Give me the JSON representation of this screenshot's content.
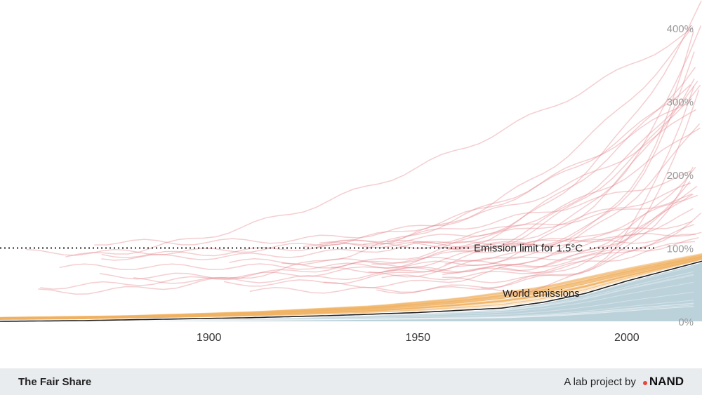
{
  "chart_data": {
    "type": "line",
    "title": "",
    "xlabel": "",
    "ylabel": "",
    "xlim": [
      1850,
      2018
    ],
    "ylim": [
      0,
      430
    ],
    "x_ticks": [
      1900,
      1950,
      2000
    ],
    "x_tick_labels": [
      "1900",
      "1950",
      "2000"
    ],
    "y_ticks": [
      0,
      100,
      200,
      300,
      400
    ],
    "y_tick_labels": [
      "0%",
      "100%",
      "200%",
      "300%",
      "400%"
    ],
    "grid": false,
    "reference_line": {
      "label": "Emission limit for 1.5°C",
      "y": 100,
      "style": "dotted"
    },
    "world_emissions": {
      "label": "World emissions",
      "x": [
        1850,
        1870,
        1890,
        1910,
        1930,
        1950,
        1960,
        1970,
        1980,
        1990,
        2000,
        2010,
        2018
      ],
      "values": [
        0,
        1,
        3,
        5,
        8,
        12,
        15,
        18,
        26,
        38,
        55,
        70,
        82
      ]
    },
    "country_band_below_limit": {
      "upper_x": [
        1850,
        1880,
        1910,
        1940,
        1960,
        1980,
        2000,
        2018
      ],
      "upper_values": [
        5,
        7,
        12,
        20,
        30,
        45,
        70,
        90
      ]
    },
    "colors": {
      "above_limit": "#e27f86",
      "below_limit": "#f1b360",
      "world_area": "#a5c3cf",
      "world_line": "#1f1f1f",
      "limit_line": "#222222"
    }
  },
  "annotations": {
    "limit_label": "Emission limit for 1.5°C",
    "world_label": "World emissions"
  },
  "footer": {
    "title": "The Fair Share",
    "credit_text": "A lab project by",
    "brand": "NAND"
  }
}
